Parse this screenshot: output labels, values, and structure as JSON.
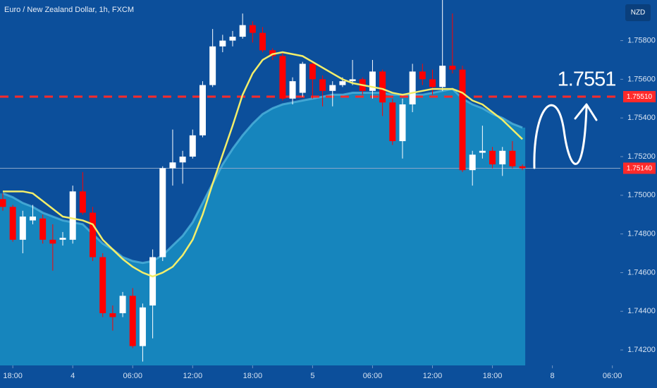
{
  "chart_data": {
    "type": "candlestick",
    "title": "Euro / New Zealand Dollar, 1h, FXCM",
    "currency": "NZD",
    "annotation": "1.7551",
    "up_color": "#ffffff",
    "down_color": "#ff0000",
    "open": [
      1.7498,
      1.7494,
      1.7477,
      1.7487,
      1.7488,
      1.7477,
      1.7477,
      1.7477,
      1.7502,
      1.7491,
      1.7468,
      1.7439,
      1.7439,
      1.7448,
      1.7422,
      1.7443,
      1.7468,
      1.7514,
      1.7517,
      1.752,
      1.7531,
      1.7557,
      1.7577,
      1.758,
      1.7582,
      1.7588,
      1.7584,
      1.7575,
      1.7572,
      1.755,
      1.7553,
      1.7568,
      1.756,
      1.7554,
      1.7557,
      1.7559,
      1.756,
      1.7554,
      1.7564,
      1.7548,
      1.7528,
      1.7547,
      1.7564,
      1.756,
      1.7556,
      1.7567,
      1.7565,
      1.7513,
      1.7522,
      1.7523,
      1.7516,
      1.7523,
      1.7515
    ],
    "high": [
      1.7501,
      1.7495,
      1.7492,
      1.7495,
      1.749,
      1.7485,
      1.7481,
      1.7505,
      1.7512,
      1.7494,
      1.747,
      1.7443,
      1.745,
      1.7452,
      1.7444,
      1.7472,
      1.7515,
      1.7534,
      1.7523,
      1.7534,
      1.7559,
      1.7586,
      1.7583,
      1.7585,
      1.7594,
      1.759,
      1.7587,
      1.7576,
      1.7574,
      1.7561,
      1.7569,
      1.7569,
      1.7562,
      1.7559,
      1.7561,
      1.757,
      1.7561,
      1.757,
      1.7565,
      1.755,
      1.755,
      1.7568,
      1.7568,
      1.7565,
      1.7601,
      1.7594,
      1.7567,
      1.7523,
      1.7536,
      1.7525,
      1.7525,
      1.7528,
      1.7516
    ],
    "low": [
      1.7492,
      1.7476,
      1.747,
      1.7485,
      1.7475,
      1.7461,
      1.7474,
      1.7475,
      1.749,
      1.7466,
      1.7437,
      1.743,
      1.7437,
      1.7421,
      1.7414,
      1.7426,
      1.7466,
      1.7505,
      1.7506,
      1.7519,
      1.753,
      1.7556,
      1.7574,
      1.7577,
      1.7581,
      1.7579,
      1.7574,
      1.757,
      1.7549,
      1.7547,
      1.7551,
      1.755,
      1.7546,
      1.7546,
      1.7556,
      1.7557,
      1.7552,
      1.755,
      1.7541,
      1.7526,
      1.7519,
      1.7543,
      1.7557,
      1.7552,
      1.7554,
      1.7563,
      1.7512,
      1.7505,
      1.7519,
      1.7514,
      1.751,
      1.7514,
      1.7513
    ],
    "close": [
      1.7494,
      1.7477,
      1.7489,
      1.7489,
      1.7477,
      1.7475,
      1.7478,
      1.7502,
      1.7491,
      1.7468,
      1.7439,
      1.7437,
      1.7448,
      1.7422,
      1.7442,
      1.7468,
      1.7514,
      1.7517,
      1.752,
      1.7531,
      1.7557,
      1.7577,
      1.758,
      1.7582,
      1.7588,
      1.7584,
      1.7575,
      1.7572,
      1.755,
      1.7559,
      1.7568,
      1.756,
      1.7554,
      1.7557,
      1.7559,
      1.756,
      1.7554,
      1.7564,
      1.7548,
      1.7528,
      1.7547,
      1.7564,
      1.756,
      1.7556,
      1.7567,
      1.7565,
      1.7513,
      1.7521,
      1.7523,
      1.7516,
      1.7523,
      1.7515,
      1.7514
    ],
    "ma_line": {
      "color": "#f3ee6a",
      "values": [
        1.7502,
        1.7502,
        1.7502,
        1.7501,
        1.7497,
        1.7493,
        1.7489,
        1.7488,
        1.7487,
        1.7485,
        1.7477,
        1.7472,
        1.7467,
        1.7463,
        1.746,
        1.7458,
        1.746,
        1.7463,
        1.7469,
        1.7477,
        1.749,
        1.7506,
        1.7521,
        1.7536,
        1.7552,
        1.7563,
        1.757,
        1.7573,
        1.7574,
        1.7573,
        1.7572,
        1.7569,
        1.7566,
        1.7563,
        1.756,
        1.7558,
        1.7557,
        1.7556,
        1.7555,
        1.7553,
        1.7552,
        1.7553,
        1.7554,
        1.7555,
        1.7555,
        1.7555,
        1.7553,
        1.7549,
        1.7547,
        1.7543,
        1.7539,
        1.7534,
        1.7529
      ]
    },
    "ma_area": {
      "color": "#1685bd",
      "values": [
        1.7501,
        1.7499,
        1.7496,
        1.7494,
        1.7491,
        1.7489,
        1.7487,
        1.7486,
        1.7485,
        1.748,
        1.7475,
        1.7472,
        1.7468,
        1.7466,
        1.7465,
        1.7466,
        1.7469,
        1.7474,
        1.7479,
        1.7486,
        1.7496,
        1.7506,
        1.7516,
        1.7524,
        1.7531,
        1.7537,
        1.7542,
        1.7545,
        1.7547,
        1.7548,
        1.7549,
        1.755,
        1.7551,
        1.7552,
        1.7552,
        1.7553,
        1.7553,
        1.7553,
        1.7553,
        1.7552,
        1.7552,
        1.7552,
        1.7552,
        1.7553,
        1.7554,
        1.7555,
        1.755,
        1.7547,
        1.7545,
        1.7542,
        1.754,
        1.7537,
        1.7535
      ]
    },
    "price_lines": [
      {
        "value": 1.7551,
        "label": "1.75510",
        "color": "#ff2a2a",
        "style": "dashed"
      },
      {
        "value": 1.7514,
        "label": "1.75140",
        "color": "#ff2a2a",
        "style": "solid"
      }
    ],
    "xlim": [
      -0.28,
      61.8
    ],
    "xticks": [
      {
        "value": 1,
        "label": "18:00"
      },
      {
        "value": 7,
        "label": "4"
      },
      {
        "value": 13,
        "label": "06:00"
      },
      {
        "value": 19,
        "label": "12:00"
      },
      {
        "value": 25,
        "label": "18:00"
      },
      {
        "value": 31,
        "label": "5"
      },
      {
        "value": 37,
        "label": "06:00"
      },
      {
        "value": 43,
        "label": "12:00"
      },
      {
        "value": 49,
        "label": "18:00"
      },
      {
        "value": 55,
        "label": "8"
      },
      {
        "value": 61,
        "label": "06:00"
      }
    ],
    "ylim": [
      1.7412,
      1.7601
    ],
    "yticks": [
      {
        "value": 1.742,
        "label": "1.74200"
      },
      {
        "value": 1.744,
        "label": "1.74400"
      },
      {
        "value": 1.746,
        "label": "1.74600"
      },
      {
        "value": 1.748,
        "label": "1.74800"
      },
      {
        "value": 1.75,
        "label": "1.75000"
      },
      {
        "value": 1.752,
        "label": "1.75200"
      },
      {
        "value": 1.754,
        "label": "1.75400"
      },
      {
        "value": 1.756,
        "label": "1.75600"
      },
      {
        "value": 1.758,
        "label": "1.75800"
      }
    ]
  }
}
